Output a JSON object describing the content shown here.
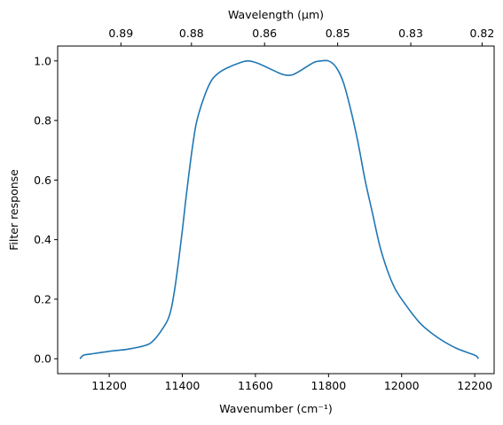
{
  "chart_data": {
    "type": "line",
    "title": "",
    "xlabel": "Wavenumber (cm⁻¹)",
    "ylabel": "Filter response",
    "x2label": "Wavelength (μm)",
    "xlim": [
      11059,
      12253
    ],
    "ylim": [
      -0.05,
      1.05
    ],
    "grid": false,
    "legend": "none",
    "xticks": [
      11200,
      11400,
      11600,
      11800,
      12000,
      12200
    ],
    "xtick_labels": [
      "11200",
      "11400",
      "11600",
      "11800",
      "12000",
      "12200"
    ],
    "yticks": [
      0.0,
      0.2,
      0.4,
      0.6,
      0.8,
      1.0
    ],
    "ytick_labels": [
      "0.0",
      "0.2",
      "0.4",
      "0.6",
      "0.8",
      "1.0"
    ],
    "top_tick_wavenumbers": [
      11232,
      11425,
      11625,
      11825,
      12025,
      12220
    ],
    "top_tick_labels": [
      "0.89",
      "0.88",
      "0.86",
      "0.85",
      "0.83",
      "0.82"
    ],
    "series": [
      {
        "color": "#1f77b4",
        "x": [
          11120,
          11130,
          11150,
          11200,
          11250,
          11300,
          11320,
          11340,
          11360,
          11370,
          11380,
          11390,
          11400,
          11410,
          11420,
          11430,
          11440,
          11460,
          11480,
          11500,
          11520,
          11560,
          11580,
          11600,
          11620,
          11660,
          11680,
          11700,
          11720,
          11760,
          11780,
          11800,
          11820,
          11840,
          11860,
          11880,
          11900,
          11920,
          11940,
          11960,
          11980,
          12000,
          12050,
          12100,
          12150,
          12200,
          12210
        ],
        "y": [
          0.0,
          0.012,
          0.016,
          0.025,
          0.032,
          0.045,
          0.06,
          0.09,
          0.13,
          0.17,
          0.24,
          0.33,
          0.43,
          0.54,
          0.64,
          0.73,
          0.8,
          0.88,
          0.935,
          0.96,
          0.975,
          0.995,
          1.0,
          0.995,
          0.985,
          0.962,
          0.953,
          0.953,
          0.965,
          0.995,
          1.0,
          1.0,
          0.98,
          0.93,
          0.84,
          0.73,
          0.6,
          0.49,
          0.38,
          0.3,
          0.24,
          0.2,
          0.12,
          0.07,
          0.035,
          0.012,
          0.0
        ]
      }
    ]
  }
}
